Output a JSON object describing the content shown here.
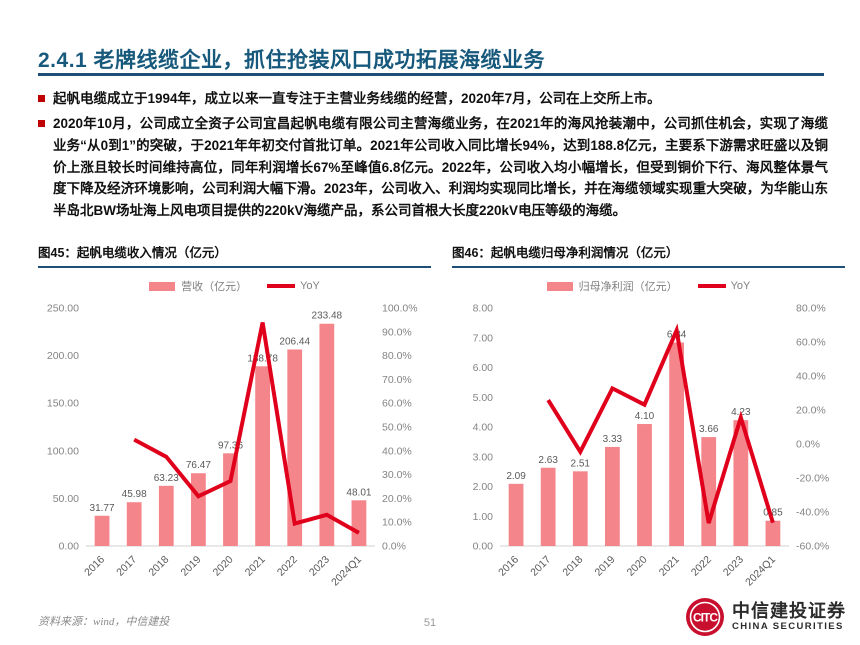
{
  "colors": {
    "title": "#17597C",
    "rule": "#1F4E79",
    "red": "#C00000",
    "bar": "#F4858B",
    "line": "#E0001B",
    "logo_red": "#C8102E"
  },
  "header": {
    "title": "2.4.1 老牌线缆企业，抓住抢装风口成功拓展海缆业务"
  },
  "content": {
    "bullets": [
      "起帆电缆成立于1994年，成立以来一直专注于主营业务线缆的经营，2020年7月，公司在上交所上市。",
      "2020年10月，公司成立全资子公司宜昌起帆电缆有限公司主营海缆业务，在2021年的海风抢装潮中，公司抓住机会，实现了海缆业务“从0到1”的突破，于2021年年初交付首批订单。2021年公司收入同比增长94%，达到188.8亿元，主要系下游需求旺盛以及铜价上涨且较长时间维持高位，同年利润增长67%至峰值6.8亿元。2022年，公司收入均小幅增长，但受到铜价下行、海风整体景气度下降及经济环境影响，公司利润大幅下滑。2023年，公司收入、利润均实现同比增长，并在海缆领域实现重大突破，为华能山东半岛北BW场址海上风电项目提供的220kV海缆产品，系公司首根大长度220kV电压等级的海缆。"
    ]
  },
  "chart_data": [
    {
      "type": "bar",
      "title": "图45：起帆电缆收入情况（亿元）",
      "categories": [
        "2016",
        "2017",
        "2018",
        "2019",
        "2020",
        "2021",
        "2022",
        "2023",
        "2024Q1"
      ],
      "series": [
        {
          "name": "营收（亿元）",
          "type": "bar",
          "axis": "left",
          "values": [
            31.77,
            45.98,
            63.23,
            76.47,
            97.36,
            188.78,
            206.44,
            233.48,
            48.01
          ],
          "labels": [
            "31.77",
            "45.98",
            "63.23",
            "76.47",
            "97.36",
            "188.78",
            "206.44",
            "233.48",
            "48.01"
          ]
        },
        {
          "name": "YoY",
          "type": "line",
          "axis": "right",
          "values": [
            null,
            44.7,
            37.5,
            20.9,
            27.3,
            93.9,
            9.4,
            13.1,
            5.5
          ]
        }
      ],
      "left_axis": {
        "min": 0,
        "max": 250,
        "step": 50,
        "decimals": 2
      },
      "right_axis": {
        "min": 0,
        "max": 100,
        "step": 10,
        "decimals": 1,
        "suffix": "%"
      },
      "grid": false,
      "legend_position": "top"
    },
    {
      "type": "bar",
      "title": "图46：起帆电缆归母净利润情况（亿元）",
      "categories": [
        "2016",
        "2017",
        "2018",
        "2019",
        "2020",
        "2021",
        "2022",
        "2023",
        "2024Q1"
      ],
      "series": [
        {
          "name": "归母净利润（亿元）",
          "type": "bar",
          "axis": "left",
          "values": [
            2.09,
            2.63,
            2.51,
            3.33,
            4.1,
            6.84,
            3.66,
            4.23,
            0.85
          ],
          "labels": [
            "2.09",
            "2.63",
            "2.51",
            "3.33",
            "4.10",
            "6.84",
            "3.66",
            "4.23",
            "0.85"
          ]
        },
        {
          "name": "YoY",
          "type": "line",
          "axis": "right",
          "values": [
            null,
            25.8,
            -4.6,
            32.7,
            23.1,
            66.8,
            -46.5,
            15.6,
            -46.3
          ]
        }
      ],
      "left_axis": {
        "min": 0,
        "max": 8,
        "step": 1,
        "decimals": 2
      },
      "right_axis": {
        "min": -60,
        "max": 80,
        "step": 20,
        "decimals": 1,
        "suffix": "%"
      },
      "grid": false,
      "legend_position": "top"
    }
  ],
  "footer": {
    "source": "资料来源：wind，中信建投",
    "page_number": "51",
    "brand_cn": "中信建投证券",
    "brand_en": "CHINA SECURITIES",
    "logo_monogram": "CITC"
  }
}
